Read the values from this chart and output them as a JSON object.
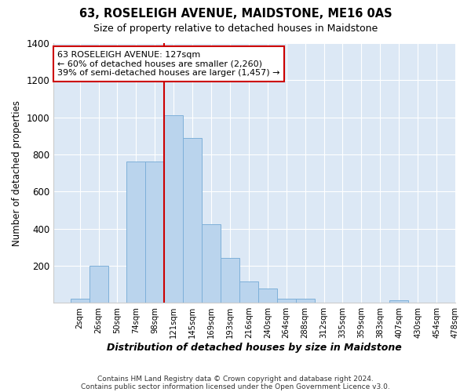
{
  "title": "63, ROSELEIGH AVENUE, MAIDSTONE, ME16 0AS",
  "subtitle": "Size of property relative to detached houses in Maidstone",
  "xlabel": "Distribution of detached houses by size in Maidstone",
  "ylabel": "Number of detached properties",
  "bar_labels": [
    "2sqm",
    "26sqm",
    "50sqm",
    "74sqm",
    "98sqm",
    "121sqm",
    "145sqm",
    "169sqm",
    "193sqm",
    "216sqm",
    "240sqm",
    "264sqm",
    "288sqm",
    "312sqm",
    "335sqm",
    "359sqm",
    "383sqm",
    "407sqm",
    "430sqm",
    "454sqm",
    "478sqm"
  ],
  "bar_heights": [
    20,
    200,
    0,
    760,
    760,
    1010,
    890,
    425,
    240,
    115,
    75,
    20,
    20,
    0,
    0,
    0,
    0,
    15,
    0,
    0,
    0
  ],
  "bar_color": "#bad4ed",
  "bar_edge_color": "#7eb0d9",
  "vline_color": "#cc0000",
  "ylim": [
    0,
    1400
  ],
  "yticks": [
    0,
    200,
    400,
    600,
    800,
    1000,
    1200,
    1400
  ],
  "annotation_text": "63 ROSELEIGH AVENUE: 127sqm\n← 60% of detached houses are smaller (2,260)\n39% of semi-detached houses are larger (1,457) →",
  "annotation_box_color": "#ffffff",
  "annotation_border_color": "#cc0000",
  "footer1": "Contains HM Land Registry data © Crown copyright and database right 2024.",
  "footer2": "Contains public sector information licensed under the Open Government Licence v3.0.",
  "bg_color": "#ffffff",
  "plot_bg_color": "#dce8f5",
  "grid_color": "#ffffff"
}
